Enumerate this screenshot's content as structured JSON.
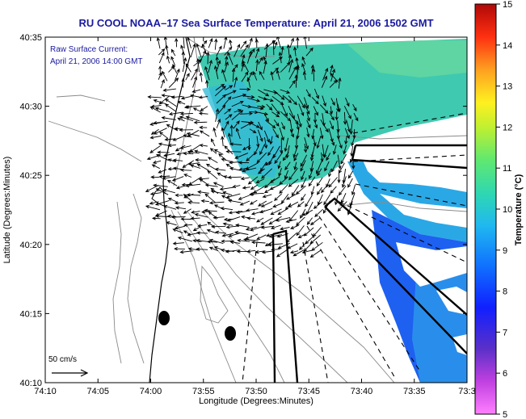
{
  "title": "RU COOL  NOAA–17  Sea Surface Temperature:  April 21, 2006 1502 GMT",
  "inset": {
    "line1": "Raw Surface Current:",
    "line2": "April 21, 2006 14:00 GMT"
  },
  "scale_label": "50 cm/s",
  "x_axis": {
    "label": "Longitude (Degrees:Minutes)",
    "ticks": [
      "74:10",
      "74:05",
      "74:00",
      "73:55",
      "73:50",
      "73:45",
      "73:40",
      "73:35",
      "73:3"
    ]
  },
  "y_axis": {
    "label": "Latitude (Degrees:Minutes)",
    "ticks": [
      "40:35",
      "40:30",
      "40:25",
      "40:20",
      "40:15",
      "40:10"
    ]
  },
  "colorbar": {
    "label": "Temperature (°C)",
    "ticks": [
      "15",
      "14",
      "13",
      "12",
      "11",
      "10",
      "9",
      "8",
      "7",
      "6",
      "5"
    ],
    "min": 5,
    "max": 15
  },
  "colors": {
    "title": "#1a1aa0",
    "sst_teal": "#35c9b4",
    "sst_cyan": "#2ea6e0",
    "sst_blue": "#1e5cf0",
    "sst_green": "#70d890",
    "arrows": "#000000",
    "bathymetry": "#888888"
  }
}
